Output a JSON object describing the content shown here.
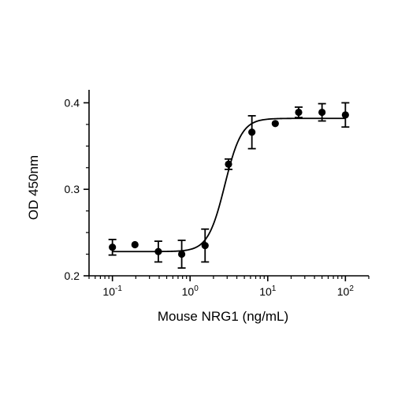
{
  "chart_data": {
    "type": "scatter",
    "title": "",
    "xlabel": "Mouse NRG1 (ng/mL)",
    "ylabel": "OD 450nm",
    "x_scale": "log",
    "xlim": [
      0.05,
      200
    ],
    "ylim": [
      0.2,
      0.415
    ],
    "x_ticks": [
      {
        "value": 0.1,
        "base": "10",
        "exp": "-1"
      },
      {
        "value": 1,
        "base": "10",
        "exp": "0"
      },
      {
        "value": 10,
        "base": "10",
        "exp": "1"
      },
      {
        "value": 100,
        "base": "10",
        "exp": "2"
      }
    ],
    "y_ticks": [
      {
        "value": 0.2,
        "label": "0.2"
      },
      {
        "value": 0.3,
        "label": "0.3"
      },
      {
        "value": 0.4,
        "label": "0.4"
      }
    ],
    "grid": false,
    "points": [
      {
        "x": 0.1,
        "y": 0.233,
        "err": 0.009
      },
      {
        "x": 0.195,
        "y": 0.236,
        "err": null
      },
      {
        "x": 0.39,
        "y": 0.228,
        "err": 0.012
      },
      {
        "x": 0.78,
        "y": 0.225,
        "err": 0.016
      },
      {
        "x": 1.56,
        "y": 0.235,
        "err": 0.019
      },
      {
        "x": 3.125,
        "y": 0.329,
        "err": 0.006
      },
      {
        "x": 6.25,
        "y": 0.366,
        "err": 0.019
      },
      {
        "x": 12.5,
        "y": 0.376,
        "err": null
      },
      {
        "x": 25,
        "y": 0.389,
        "err": 0.006
      },
      {
        "x": 50,
        "y": 0.389,
        "err": 0.01
      },
      {
        "x": 100,
        "y": 0.386,
        "err": 0.014
      }
    ],
    "fit": {
      "model": "4PL",
      "bottom": 0.228,
      "top": 0.382,
      "ec50": 2.8,
      "hill": 4.0
    }
  }
}
